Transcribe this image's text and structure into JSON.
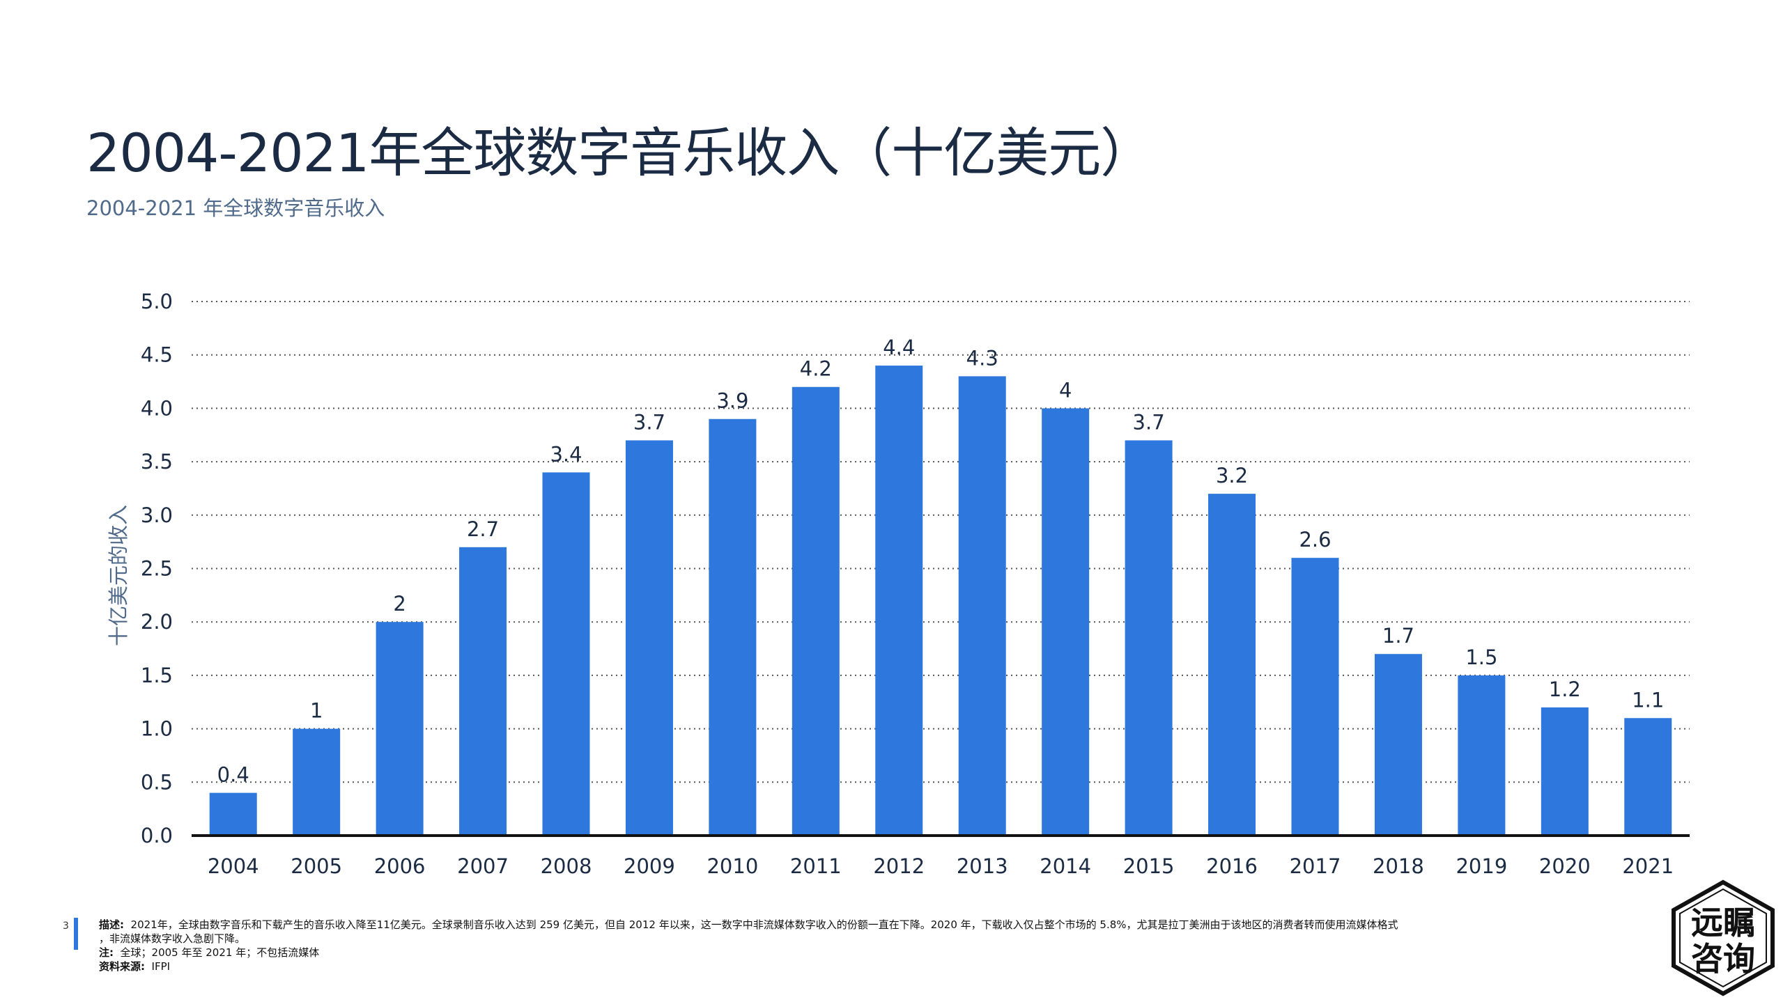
{
  "header": {
    "title": "2004-2021年全球数字音乐收入（十亿美元）",
    "subtitle": "2004-2021 年全球数字音乐收入"
  },
  "chart_data": {
    "type": "bar",
    "categories": [
      "2004",
      "2005",
      "2006",
      "2007",
      "2008",
      "2009",
      "2010",
      "2011",
      "2012",
      "2013",
      "2014",
      "2015",
      "2016",
      "2017",
      "2018",
      "2019",
      "2020",
      "2021"
    ],
    "values": [
      0.4,
      1,
      2,
      2.7,
      3.4,
      3.7,
      3.9,
      4.2,
      4.4,
      4.3,
      4,
      3.7,
      3.2,
      2.6,
      1.7,
      1.5,
      1.2,
      1.1
    ],
    "data_labels": [
      "0.4",
      "1",
      "2",
      "2.7",
      "3.4",
      "3.7",
      "3.9",
      "4.2",
      "4.4",
      "4.3",
      "4",
      "3.7",
      "3.2",
      "2.6",
      "1.7",
      "1.5",
      "1.2",
      "1.1"
    ],
    "ylabel": "十亿美元的收入",
    "ylim": [
      0,
      5
    ],
    "yticks": [
      "0.0",
      "0.5",
      "1.0",
      "1.5",
      "2.0",
      "2.5",
      "3.0",
      "3.5",
      "4.0",
      "4.5",
      "5.0"
    ],
    "grid": "horizontal-dotted",
    "bar_color": "#2d77dd"
  },
  "footer": {
    "page_number": "3",
    "description_label": "描述:",
    "description": "2021年，全球由数字音乐和下载产生的音乐收入降至11亿美元。全球录制音乐收入达到 259 亿美元，但自 2012 年以来，这一数字中非流媒体数字收入的份额一直在下降。2020 年，下载收入仅占整个市场的 5.8%，尤其是拉丁美洲由于该地区的消费者转而使用流媒体格式",
    "description_cont": "，非流媒体数字收入急剧下降。",
    "note_label": "注:",
    "note": "全球；2005 年至 2021 年；不包括流媒体",
    "source_label": "资料来源:",
    "source": "IFPI"
  },
  "logo": {
    "line1": "远瞩",
    "line2": "咨询"
  },
  "colors": {
    "accent": "#2d77dd",
    "title": "#1b2b44",
    "subtitle": "#4f6a8a"
  }
}
